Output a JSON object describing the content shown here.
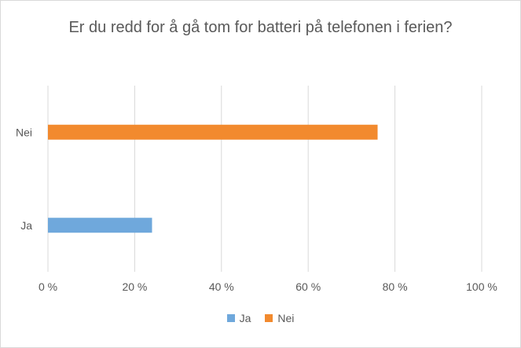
{
  "chart_data": {
    "type": "bar",
    "orientation": "horizontal",
    "title": "Er du redd for å gå tom for batteri på telefonen i ferien?",
    "categories": [
      "Ja",
      "Nei"
    ],
    "series": [
      {
        "values": [
          24,
          76
        ]
      }
    ],
    "bar_colors": [
      "#6fa8dc",
      "#f28a2e"
    ],
    "xlim": [
      0,
      100
    ],
    "x_ticks": [
      0,
      20,
      40,
      60,
      80,
      100
    ],
    "x_tick_labels": [
      "0 %",
      "20 %",
      "40 %",
      "60 %",
      "80 %",
      "100 %"
    ],
    "grid": true,
    "legend": {
      "placement": "bottom",
      "entries": [
        {
          "label": "Ja",
          "color": "#6fa8dc"
        },
        {
          "label": "Nei",
          "color": "#f28a2e"
        }
      ]
    }
  }
}
